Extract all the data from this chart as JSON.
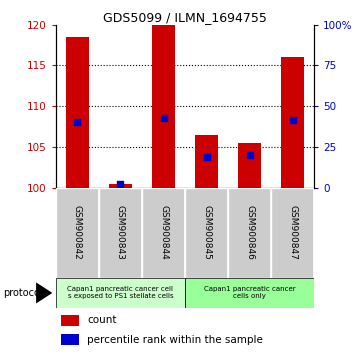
{
  "title": "GDS5099 / ILMN_1694755",
  "samples": [
    "GSM900842",
    "GSM900843",
    "GSM900844",
    "GSM900845",
    "GSM900846",
    "GSM900847"
  ],
  "counts": [
    118.5,
    100.5,
    120.0,
    106.5,
    105.5,
    116.0
  ],
  "percentiles": [
    40.5,
    2.0,
    43.0,
    19.0,
    20.0,
    41.5
  ],
  "ylim_left": [
    100,
    120
  ],
  "ylim_right": [
    0,
    100
  ],
  "yticks_left": [
    100,
    105,
    110,
    115,
    120
  ],
  "yticks_right": [
    0,
    25,
    50,
    75,
    100
  ],
  "yticklabels_right": [
    "0",
    "25",
    "50",
    "75",
    "100%"
  ],
  "bar_color": "#cc0000",
  "percentile_color": "#0000cc",
  "bg_color": "#ffffff",
  "plot_bg": "#ffffff",
  "group1_label": "Capan1 pancreatic cancer cell\ns exposed to PS1 stellate cells",
  "group2_label": "Capan1 pancreatic cancer\ncells only",
  "group1_color": "#ccffcc",
  "group2_color": "#99ff99",
  "sample_box_color": "#cccccc",
  "protocol_label": "protocol",
  "legend_count_label": "count",
  "legend_percentile_label": "percentile rank within the sample",
  "bar_width": 0.55,
  "gridline_yticks": [
    105,
    110,
    115
  ]
}
